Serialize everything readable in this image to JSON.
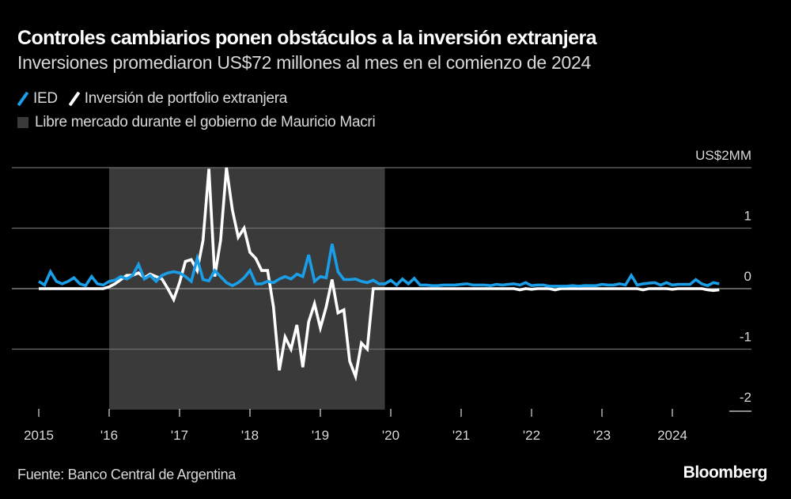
{
  "header": {
    "title": "Controles cambiarios ponen obstáculos a la inversión extranjera",
    "subtitle": "Inversiones promediaron US$72 millones al mes en el comienzo de 2024"
  },
  "legend": {
    "series": [
      {
        "label": "IED",
        "color": "#1a9ee8"
      },
      {
        "label": "Inversión de portfolio extranjera",
        "color": "#ffffff"
      }
    ],
    "shade": {
      "label": "Libre mercado durante el gobierno de Mauricio Macri",
      "color": "#3a3a3a"
    }
  },
  "footer": {
    "source": "Fuente: Banco Central de Argentina",
    "brand": "Bloomberg"
  },
  "chart_data": {
    "type": "line",
    "title": "Controles cambiarios ponen obstáculos a la inversión extranjera",
    "subtitle": "Inversiones promediaron US$72 millones al mes en el comienzo de 2024",
    "xlabel": "",
    "ylabel": "US$2MM",
    "y_unit_label": "US$2MM",
    "ylim": [
      -2,
      2
    ],
    "yticks": [
      2,
      1,
      0,
      -1,
      -2
    ],
    "ytick_labels": [
      "US$2MM",
      "1",
      "0",
      "-1",
      "-2"
    ],
    "x_start": "2015-01",
    "x_frequency": "monthly",
    "xticks": [
      "2015",
      "'16",
      "'17",
      "'18",
      "'19",
      "'20",
      "'21",
      "'22",
      "'23",
      "2024"
    ],
    "xtick_years": [
      2015,
      2016,
      2017,
      2018,
      2019,
      2020,
      2021,
      2022,
      2023,
      2024
    ],
    "grid": true,
    "legend_position": "top-left",
    "shaded_region": {
      "label": "Libre mercado durante el gobierno de Mauricio Macri",
      "start": "2015-12",
      "end": "2019-11"
    },
    "series": [
      {
        "name": "IED",
        "color": "#1a9ee8",
        "values": [
          0.12,
          0.06,
          0.28,
          0.12,
          0.08,
          0.12,
          0.18,
          0.08,
          0.05,
          0.2,
          0.08,
          0.06,
          0.12,
          0.14,
          0.2,
          0.16,
          0.22,
          0.4,
          0.16,
          0.22,
          0.12,
          0.22,
          0.26,
          0.28,
          0.26,
          0.2,
          0.12,
          0.5,
          0.15,
          0.13,
          0.3,
          0.2,
          0.1,
          0.05,
          0.1,
          0.18,
          0.3,
          0.08,
          0.08,
          0.12,
          0.1,
          0.16,
          0.2,
          0.16,
          0.24,
          0.2,
          0.56,
          0.12,
          0.2,
          0.18,
          0.74,
          0.28,
          0.15,
          0.15,
          0.16,
          0.12,
          0.1,
          0.14,
          0.08,
          0.08,
          0.14,
          0.06,
          0.16,
          0.08,
          0.17,
          0.06,
          0.06,
          0.05,
          0.05,
          0.06,
          0.06,
          0.06,
          0.07,
          0.08,
          0.06,
          0.06,
          0.06,
          0.05,
          0.07,
          0.06,
          0.07,
          0.08,
          0.06,
          0.1,
          0.05,
          0.06,
          0.06,
          0.04,
          0.04,
          0.04,
          0.04,
          0.05,
          0.04,
          0.05,
          0.05,
          0.05,
          0.07,
          0.06,
          0.06,
          0.08,
          0.06,
          0.22,
          0.06,
          0.08,
          0.09,
          0.1,
          0.06,
          0.1,
          0.06,
          0.07,
          0.07,
          0.07,
          0.15,
          0.08,
          0.05,
          0.1,
          0.08
        ]
      },
      {
        "name": "Inversión de portfolio extranjera",
        "color": "#ffffff",
        "values": [
          0.0,
          0.0,
          0.0,
          0.0,
          0.0,
          0.0,
          0.0,
          0.0,
          0.0,
          0.0,
          0.0,
          0.0,
          0.03,
          0.08,
          0.15,
          0.22,
          0.22,
          0.26,
          0.18,
          0.24,
          0.2,
          0.16,
          0.0,
          -0.18,
          0.1,
          0.45,
          0.48,
          0.3,
          0.8,
          1.98,
          0.2,
          0.8,
          2.0,
          1.3,
          0.85,
          1.0,
          0.6,
          0.5,
          0.3,
          0.3,
          -0.3,
          -1.35,
          -0.8,
          -1.0,
          -0.6,
          -1.3,
          -0.55,
          -0.25,
          -0.65,
          -0.3,
          0.15,
          -0.4,
          -0.35,
          -1.2,
          -1.45,
          -0.9,
          -1.0,
          0.0,
          0.0,
          0.0,
          0.0,
          0.0,
          0.0,
          0.0,
          0.0,
          0.0,
          0.0,
          0.0,
          0.0,
          0.0,
          0.0,
          0.0,
          0.0,
          0.0,
          0.0,
          0.0,
          0.0,
          0.0,
          0.0,
          0.0,
          0.0,
          0.0,
          -0.02,
          0.0,
          -0.01,
          0.0,
          0.0,
          0.0,
          -0.02,
          0.0,
          0.0,
          0.0,
          0.0,
          0.0,
          0.0,
          0.0,
          0.0,
          0.0,
          0.0,
          0.0,
          0.0,
          0.0,
          0.0,
          -0.02,
          0.0,
          0.0,
          0.0,
          0.0,
          -0.01,
          0.0,
          0.0,
          0.0,
          0.0,
          0.0,
          -0.02,
          -0.03,
          -0.02
        ]
      }
    ]
  }
}
